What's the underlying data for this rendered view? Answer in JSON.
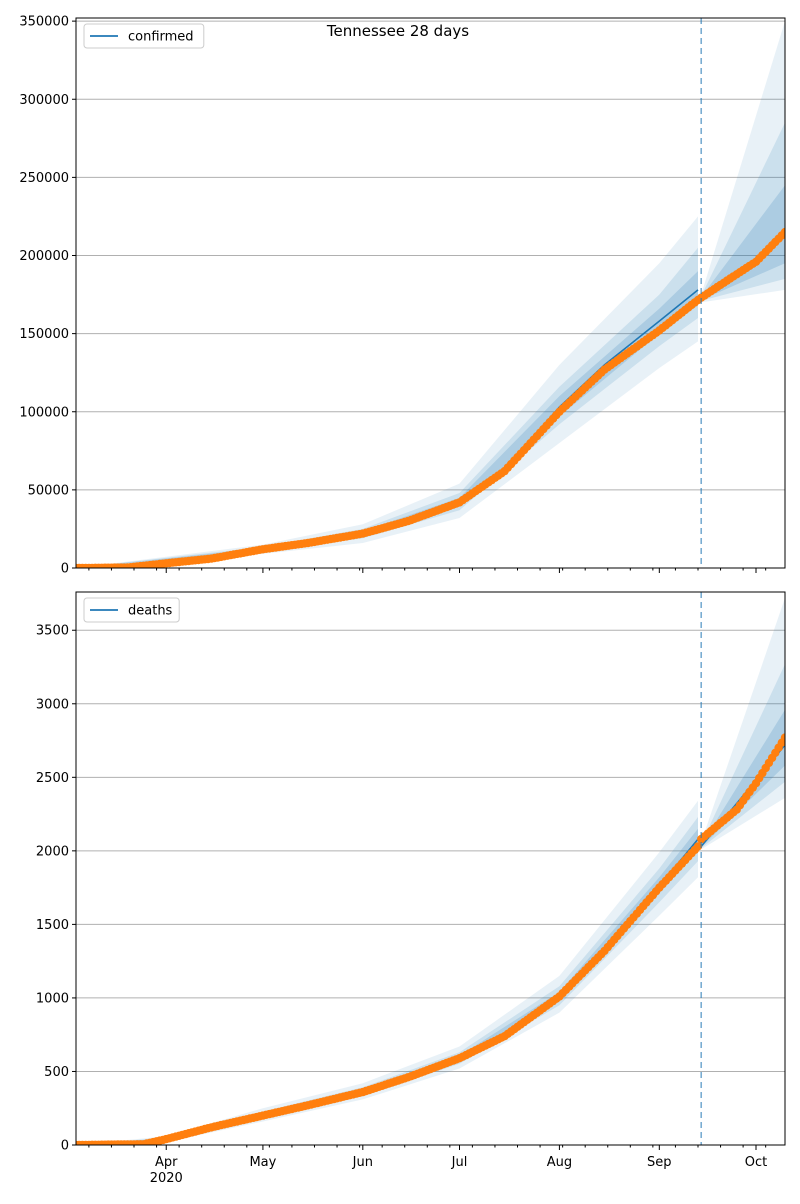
{
  "figure": {
    "title": "Tennessee 28 days"
  },
  "colors": {
    "model": "#1f77b4",
    "observed": "#ff7f0e",
    "band": "#1f77b4",
    "grid": "#b0b0b0",
    "split_line": "#1f77b4"
  },
  "chart_data": [
    {
      "type": "line",
      "legend": "confirmed",
      "legend_position": "top-left",
      "grid": "horizontal",
      "x_range": [
        "2020-03-04",
        "2020-10-10"
      ],
      "ylim": [
        0,
        352000
      ],
      "yticks": [
        0,
        50000,
        100000,
        150000,
        200000,
        250000,
        300000,
        350000
      ],
      "forecast_start": "2020-09-14",
      "model_line": [
        {
          "x": "2020-03-04",
          "y": 0
        },
        {
          "x": "2020-03-20",
          "y": 300
        },
        {
          "x": "2020-04-01",
          "y": 3000
        },
        {
          "x": "2020-04-15",
          "y": 6000
        },
        {
          "x": "2020-05-01",
          "y": 12000
        },
        {
          "x": "2020-05-15",
          "y": 16000
        },
        {
          "x": "2020-06-01",
          "y": 22000
        },
        {
          "x": "2020-06-15",
          "y": 30000
        },
        {
          "x": "2020-07-01",
          "y": 42000
        },
        {
          "x": "2020-07-15",
          "y": 63000
        },
        {
          "x": "2020-08-01",
          "y": 103000
        },
        {
          "x": "2020-08-15",
          "y": 130000
        },
        {
          "x": "2020-09-01",
          "y": 158000
        },
        {
          "x": "2020-09-13",
          "y": 178000
        },
        {
          "x": "2020-09-14",
          "y": 172000
        },
        {
          "x": "2020-10-10",
          "y": 212000
        }
      ],
      "observed": [
        {
          "x": "2020-03-04",
          "y": 0
        },
        {
          "x": "2020-03-20",
          "y": 300
        },
        {
          "x": "2020-04-01",
          "y": 3000
        },
        {
          "x": "2020-04-15",
          "y": 6000
        },
        {
          "x": "2020-05-01",
          "y": 12000
        },
        {
          "x": "2020-05-15",
          "y": 16000
        },
        {
          "x": "2020-06-01",
          "y": 22000
        },
        {
          "x": "2020-06-15",
          "y": 30000
        },
        {
          "x": "2020-07-01",
          "y": 42000
        },
        {
          "x": "2020-07-15",
          "y": 62000
        },
        {
          "x": "2020-08-01",
          "y": 100000
        },
        {
          "x": "2020-08-15",
          "y": 127000
        },
        {
          "x": "2020-09-01",
          "y": 152000
        },
        {
          "x": "2020-09-12",
          "y": 170000
        },
        {
          "x": "2020-09-14",
          "y": 173000
        },
        {
          "x": "2020-09-25",
          "y": 188000
        },
        {
          "x": "2020-10-01",
          "y": 196000
        },
        {
          "x": "2020-10-10",
          "y": 215000
        }
      ],
      "bands": [
        {
          "level": "outer",
          "points": [
            {
              "x": "2020-03-04",
              "lo": 0,
              "hi": 0
            },
            {
              "x": "2020-05-01",
              "lo": 9000,
              "hi": 15000
            },
            {
              "x": "2020-06-01",
              "lo": 16000,
              "hi": 28000
            },
            {
              "x": "2020-07-01",
              "lo": 32000,
              "hi": 54000
            },
            {
              "x": "2020-08-01",
              "lo": 80000,
              "hi": 130000
            },
            {
              "x": "2020-09-01",
              "lo": 128000,
              "hi": 195000
            },
            {
              "x": "2020-09-13",
              "lo": 145000,
              "hi": 225000
            },
            {
              "x": "2020-09-14",
              "lo": 170000,
              "hi": 175000
            },
            {
              "x": "2020-10-10",
              "lo": 178000,
              "hi": 350000
            }
          ]
        },
        {
          "level": "middle",
          "points": [
            {
              "x": "2020-03-04",
              "lo": 0,
              "hi": 0
            },
            {
              "x": "2020-05-01",
              "lo": 10500,
              "hi": 13500
            },
            {
              "x": "2020-06-01",
              "lo": 19000,
              "hi": 25000
            },
            {
              "x": "2020-07-01",
              "lo": 37000,
              "hi": 48000
            },
            {
              "x": "2020-08-01",
              "lo": 92000,
              "hi": 116000
            },
            {
              "x": "2020-09-01",
              "lo": 142000,
              "hi": 175000
            },
            {
              "x": "2020-09-13",
              "lo": 160000,
              "hi": 205000
            },
            {
              "x": "2020-09-14",
              "lo": 171000,
              "hi": 174000
            },
            {
              "x": "2020-10-10",
              "lo": 185000,
              "hi": 285000
            }
          ]
        },
        {
          "level": "inner",
          "points": [
            {
              "x": "2020-03-04",
              "lo": 0,
              "hi": 0
            },
            {
              "x": "2020-05-01",
              "lo": 11300,
              "hi": 12700
            },
            {
              "x": "2020-06-01",
              "lo": 20500,
              "hi": 23500
            },
            {
              "x": "2020-07-01",
              "lo": 39500,
              "hi": 45000
            },
            {
              "x": "2020-08-01",
              "lo": 97000,
              "hi": 110000
            },
            {
              "x": "2020-09-01",
              "lo": 150000,
              "hi": 166000
            },
            {
              "x": "2020-09-13",
              "lo": 168000,
              "hi": 190000
            },
            {
              "x": "2020-09-14",
              "lo": 171500,
              "hi": 173500
            },
            {
              "x": "2020-10-10",
              "lo": 195000,
              "hi": 245000
            }
          ]
        }
      ]
    },
    {
      "type": "line",
      "legend": "deaths",
      "legend_position": "top-left",
      "grid": "horizontal",
      "x_range": [
        "2020-03-04",
        "2020-10-10"
      ],
      "ylim": [
        0,
        3760
      ],
      "yticks": [
        0,
        500,
        1000,
        1500,
        2000,
        2500,
        3000,
        3500
      ],
      "forecast_start": "2020-09-14",
      "x_month_ticks": [
        "Apr",
        "May",
        "Jun",
        "Jul",
        "Aug",
        "Sep",
        "Oct"
      ],
      "x_year_label": "2020",
      "model_line": [
        {
          "x": "2020-03-04",
          "y": 0
        },
        {
          "x": "2020-03-25",
          "y": 5
        },
        {
          "x": "2020-04-01",
          "y": 40
        },
        {
          "x": "2020-04-15",
          "y": 120
        },
        {
          "x": "2020-05-01",
          "y": 200
        },
        {
          "x": "2020-05-15",
          "y": 270
        },
        {
          "x": "2020-06-01",
          "y": 360
        },
        {
          "x": "2020-06-15",
          "y": 460
        },
        {
          "x": "2020-07-01",
          "y": 590
        },
        {
          "x": "2020-07-15",
          "y": 740
        },
        {
          "x": "2020-08-01",
          "y": 1010
        },
        {
          "x": "2020-08-15",
          "y": 1330
        },
        {
          "x": "2020-09-01",
          "y": 1760
        },
        {
          "x": "2020-09-13",
          "y": 2080
        },
        {
          "x": "2020-09-14",
          "y": 2030
        },
        {
          "x": "2020-10-10",
          "y": 2720
        }
      ],
      "observed": [
        {
          "x": "2020-03-04",
          "y": 0
        },
        {
          "x": "2020-03-25",
          "y": 5
        },
        {
          "x": "2020-04-01",
          "y": 40
        },
        {
          "x": "2020-04-15",
          "y": 120
        },
        {
          "x": "2020-05-01",
          "y": 200
        },
        {
          "x": "2020-05-15",
          "y": 270
        },
        {
          "x": "2020-06-01",
          "y": 360
        },
        {
          "x": "2020-06-15",
          "y": 460
        },
        {
          "x": "2020-07-01",
          "y": 590
        },
        {
          "x": "2020-07-15",
          "y": 740
        },
        {
          "x": "2020-08-01",
          "y": 1010
        },
        {
          "x": "2020-08-15",
          "y": 1320
        },
        {
          "x": "2020-09-01",
          "y": 1750
        },
        {
          "x": "2020-09-13",
          "y": 2030
        },
        {
          "x": "2020-09-14",
          "y": 2080
        },
        {
          "x": "2020-09-25",
          "y": 2280
        },
        {
          "x": "2020-10-01",
          "y": 2460
        },
        {
          "x": "2020-10-10",
          "y": 2770
        }
      ],
      "bands": [
        {
          "level": "outer",
          "points": [
            {
              "x": "2020-03-04",
              "lo": 0,
              "hi": 0
            },
            {
              "x": "2020-04-01",
              "lo": 20,
              "hi": 60
            },
            {
              "x": "2020-05-01",
              "lo": 160,
              "hi": 250
            },
            {
              "x": "2020-06-01",
              "lo": 310,
              "hi": 420
            },
            {
              "x": "2020-07-01",
              "lo": 520,
              "hi": 670
            },
            {
              "x": "2020-08-01",
              "lo": 900,
              "hi": 1150
            },
            {
              "x": "2020-09-01",
              "lo": 1560,
              "hi": 1990
            },
            {
              "x": "2020-09-13",
              "lo": 1820,
              "hi": 2340
            },
            {
              "x": "2020-09-14",
              "lo": 2010,
              "hi": 2060
            },
            {
              "x": "2020-10-10",
              "lo": 2360,
              "hi": 3720
            }
          ]
        },
        {
          "level": "middle",
          "points": [
            {
              "x": "2020-03-04",
              "lo": 0,
              "hi": 0
            },
            {
              "x": "2020-04-01",
              "lo": 28,
              "hi": 52
            },
            {
              "x": "2020-05-01",
              "lo": 178,
              "hi": 228
            },
            {
              "x": "2020-06-01",
              "lo": 332,
              "hi": 392
            },
            {
              "x": "2020-07-01",
              "lo": 552,
              "hi": 630
            },
            {
              "x": "2020-08-01",
              "lo": 950,
              "hi": 1080
            },
            {
              "x": "2020-09-01",
              "lo": 1650,
              "hi": 1880
            },
            {
              "x": "2020-09-13",
              "lo": 1930,
              "hi": 2230
            },
            {
              "x": "2020-09-14",
              "lo": 2018,
              "hi": 2048
            },
            {
              "x": "2020-10-10",
              "lo": 2470,
              "hi": 3270
            }
          ]
        },
        {
          "level": "inner",
          "points": [
            {
              "x": "2020-03-04",
              "lo": 0,
              "hi": 0
            },
            {
              "x": "2020-04-01",
              "lo": 34,
              "hi": 46
            },
            {
              "x": "2020-05-01",
              "lo": 190,
              "hi": 212
            },
            {
              "x": "2020-06-01",
              "lo": 347,
              "hi": 375
            },
            {
              "x": "2020-07-01",
              "lo": 572,
              "hi": 608
            },
            {
              "x": "2020-08-01",
              "lo": 980,
              "hi": 1040
            },
            {
              "x": "2020-09-01",
              "lo": 1710,
              "hi": 1820
            },
            {
              "x": "2020-09-13",
              "lo": 2010,
              "hi": 2150
            },
            {
              "x": "2020-09-14",
              "lo": 2024,
              "hi": 2040
            },
            {
              "x": "2020-10-10",
              "lo": 2580,
              "hi": 2960
            }
          ]
        }
      ]
    }
  ]
}
